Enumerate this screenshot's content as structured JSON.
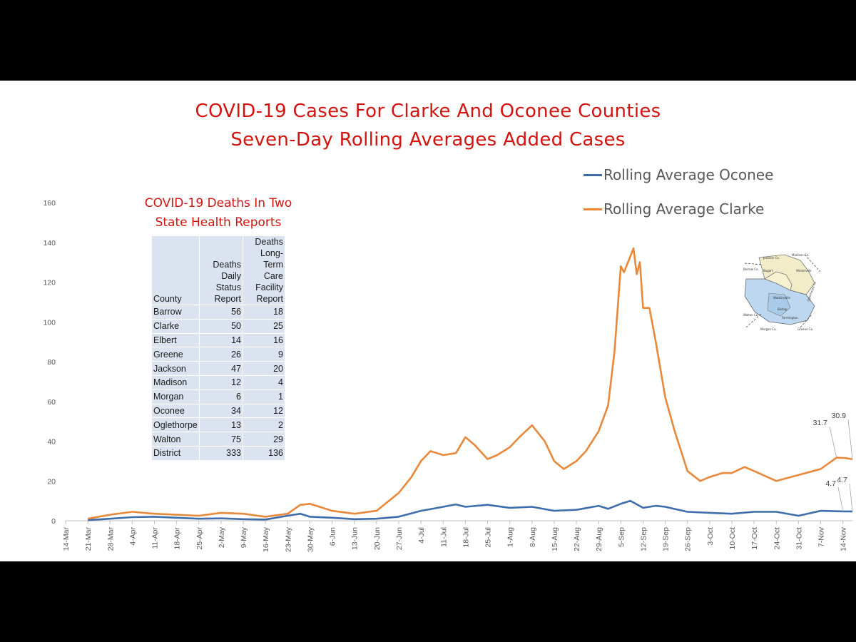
{
  "title_line1": "COVID-19 Cases For Clarke And Oconee Counties",
  "title_line2": "Seven-Day Rolling Averages Added Cases",
  "table": {
    "title_line1": "COVID-19 Deaths In Two",
    "title_line2": "State Health Reports",
    "headers": [
      "County",
      "Deaths Daily Status Report",
      "Deaths Long-Term Care Facility Report"
    ],
    "rows": [
      [
        "Barrow",
        "56",
        "18"
      ],
      [
        "Clarke",
        "50",
        "25"
      ],
      [
        "Elbert",
        "14",
        "16"
      ],
      [
        "Greene",
        "26",
        "9"
      ],
      [
        "Jackson",
        "47",
        "20"
      ],
      [
        "Madison",
        "12",
        "4"
      ],
      [
        "Morgan",
        "6",
        "1"
      ],
      [
        "Oconee",
        "34",
        "12"
      ],
      [
        "Oglethorpe",
        "13",
        "2"
      ],
      [
        "Walton",
        "75",
        "29"
      ],
      [
        "District",
        "333",
        "136"
      ]
    ]
  },
  "map_labels": [
    "Jackson Co.",
    "Madison Co.",
    "Barrow Co.",
    "Walton Co.",
    "Morgan Co.",
    "Greene Co.",
    "Oglethorpe Co.",
    "Winterville",
    "Bogart",
    "Watkinsville",
    "Bishop",
    "Farmington"
  ],
  "colors": {
    "oconee": "#3d6eab",
    "clarke": "#e8883a",
    "title": "#d2140f",
    "table_bg": "#dce3f0",
    "map_fill": "#bcd7ef"
  },
  "chart_data": {
    "type": "line",
    "ylim": [
      0,
      160
    ],
    "yticks": [
      0,
      20,
      40,
      60,
      80,
      100,
      120,
      140,
      160
    ],
    "x_start": "14-Mar",
    "x_end": "17-Nov",
    "xticks": [
      "14-Mar",
      "21-Mar",
      "28-Mar",
      "4-Apr",
      "11-Apr",
      "18-Apr",
      "25-Apr",
      "2-May",
      "9-May",
      "16-May",
      "23-May",
      "30-May",
      "6-Jun",
      "13-Jun",
      "20-Jun",
      "27-Jun",
      "4-Jul",
      "11-Jul",
      "18-Jul",
      "25-Jul",
      "1-Aug",
      "8-Aug",
      "15-Aug",
      "22-Aug",
      "29-Aug",
      "5-Sep",
      "12-Sep",
      "19-Sep",
      "26-Sep",
      "3-Oct",
      "10-Oct",
      "17-Oct",
      "24-Oct",
      "31-Oct",
      "7-Nov",
      "14-Nov"
    ],
    "legend_position": "top-right",
    "grid": false,
    "series": [
      {
        "name": "Rolling Average Oconee",
        "color": "#3d6eab",
        "points": [
          [
            "21-Mar",
            0.3
          ],
          [
            "28-Mar",
            1.0
          ],
          [
            "4-Apr",
            1.8
          ],
          [
            "11-Apr",
            2.0
          ],
          [
            "18-Apr",
            1.5
          ],
          [
            "25-Apr",
            1.0
          ],
          [
            "2-May",
            1.2
          ],
          [
            "9-May",
            0.8
          ],
          [
            "16-May",
            0.6
          ],
          [
            "23-May",
            2.5
          ],
          [
            "27-May",
            3.5
          ],
          [
            "30-May",
            2.0
          ],
          [
            "6-Jun",
            1.5
          ],
          [
            "13-Jun",
            0.8
          ],
          [
            "20-Jun",
            1.0
          ],
          [
            "27-Jun",
            2.0
          ],
          [
            "4-Jul",
            5.0
          ],
          [
            "11-Jul",
            7.0
          ],
          [
            "15-Jul",
            8.2
          ],
          [
            "18-Jul",
            7.0
          ],
          [
            "25-Jul",
            8.0
          ],
          [
            "1-Aug",
            6.5
          ],
          [
            "8-Aug",
            7.0
          ],
          [
            "15-Aug",
            5.0
          ],
          [
            "22-Aug",
            5.5
          ],
          [
            "29-Aug",
            7.5
          ],
          [
            "1-Sep",
            6.0
          ],
          [
            "5-Sep",
            8.5
          ],
          [
            "8-Sep",
            10.0
          ],
          [
            "12-Sep",
            6.5
          ],
          [
            "16-Sep",
            7.5
          ],
          [
            "19-Sep",
            7.0
          ],
          [
            "26-Sep",
            4.5
          ],
          [
            "3-Oct",
            4.0
          ],
          [
            "10-Oct",
            3.5
          ],
          [
            "17-Oct",
            4.5
          ],
          [
            "24-Oct",
            4.5
          ],
          [
            "31-Oct",
            2.5
          ],
          [
            "7-Nov",
            5.0
          ],
          [
            "14-Nov",
            4.7
          ],
          [
            "17-Nov",
            4.7
          ]
        ]
      },
      {
        "name": "Rolling Average Clarke",
        "color": "#e8883a",
        "points": [
          [
            "21-Mar",
            1.0
          ],
          [
            "28-Mar",
            3.0
          ],
          [
            "4-Apr",
            4.5
          ],
          [
            "11-Apr",
            3.5
          ],
          [
            "18-Apr",
            3.0
          ],
          [
            "25-Apr",
            2.5
          ],
          [
            "2-May",
            4.0
          ],
          [
            "9-May",
            3.5
          ],
          [
            "16-May",
            2.0
          ],
          [
            "23-May",
            3.5
          ],
          [
            "27-May",
            8.0
          ],
          [
            "30-May",
            8.5
          ],
          [
            "3-Jun",
            6.5
          ],
          [
            "6-Jun",
            5.0
          ],
          [
            "13-Jun",
            3.5
          ],
          [
            "20-Jun",
            5.0
          ],
          [
            "27-Jun",
            14.0
          ],
          [
            "1-Jul",
            22.0
          ],
          [
            "4-Jul",
            30.0
          ],
          [
            "7-Jul",
            35.0
          ],
          [
            "11-Jul",
            33.0
          ],
          [
            "15-Jul",
            34.0
          ],
          [
            "18-Jul",
            42.0
          ],
          [
            "21-Jul",
            38.0
          ],
          [
            "25-Jul",
            31.0
          ],
          [
            "28-Jul",
            33.0
          ],
          [
            "1-Aug",
            37.0
          ],
          [
            "4-Aug",
            42.0
          ],
          [
            "8-Aug",
            48.0
          ],
          [
            "12-Aug",
            40.0
          ],
          [
            "15-Aug",
            30.0
          ],
          [
            "18-Aug",
            26.0
          ],
          [
            "22-Aug",
            30.0
          ],
          [
            "25-Aug",
            35.0
          ],
          [
            "29-Aug",
            45.0
          ],
          [
            "1-Sep",
            58.0
          ],
          [
            "3-Sep",
            85.0
          ],
          [
            "5-Sep",
            128.0
          ],
          [
            "6-Sep",
            125.0
          ],
          [
            "9-Sep",
            137.0
          ],
          [
            "10-Sep",
            124.0
          ],
          [
            "11-Sep",
            130.0
          ],
          [
            "12-Sep",
            107.0
          ],
          [
            "14-Sep",
            107.0
          ],
          [
            "16-Sep",
            90.0
          ],
          [
            "19-Sep",
            62.0
          ],
          [
            "22-Sep",
            45.0
          ],
          [
            "26-Sep",
            25.0
          ],
          [
            "30-Sep",
            20.0
          ],
          [
            "3-Oct",
            22.0
          ],
          [
            "7-Oct",
            24.0
          ],
          [
            "10-Oct",
            24.0
          ],
          [
            "14-Oct",
            27.0
          ],
          [
            "17-Oct",
            25.0
          ],
          [
            "24-Oct",
            20.0
          ],
          [
            "31-Oct",
            23.0
          ],
          [
            "7-Nov",
            26.0
          ],
          [
            "12-Nov",
            31.7
          ],
          [
            "15-Nov",
            31.5
          ],
          [
            "17-Nov",
            30.9
          ]
        ]
      }
    ],
    "data_labels": [
      "31.7",
      "30.9",
      "4.7",
      "4.7"
    ]
  }
}
